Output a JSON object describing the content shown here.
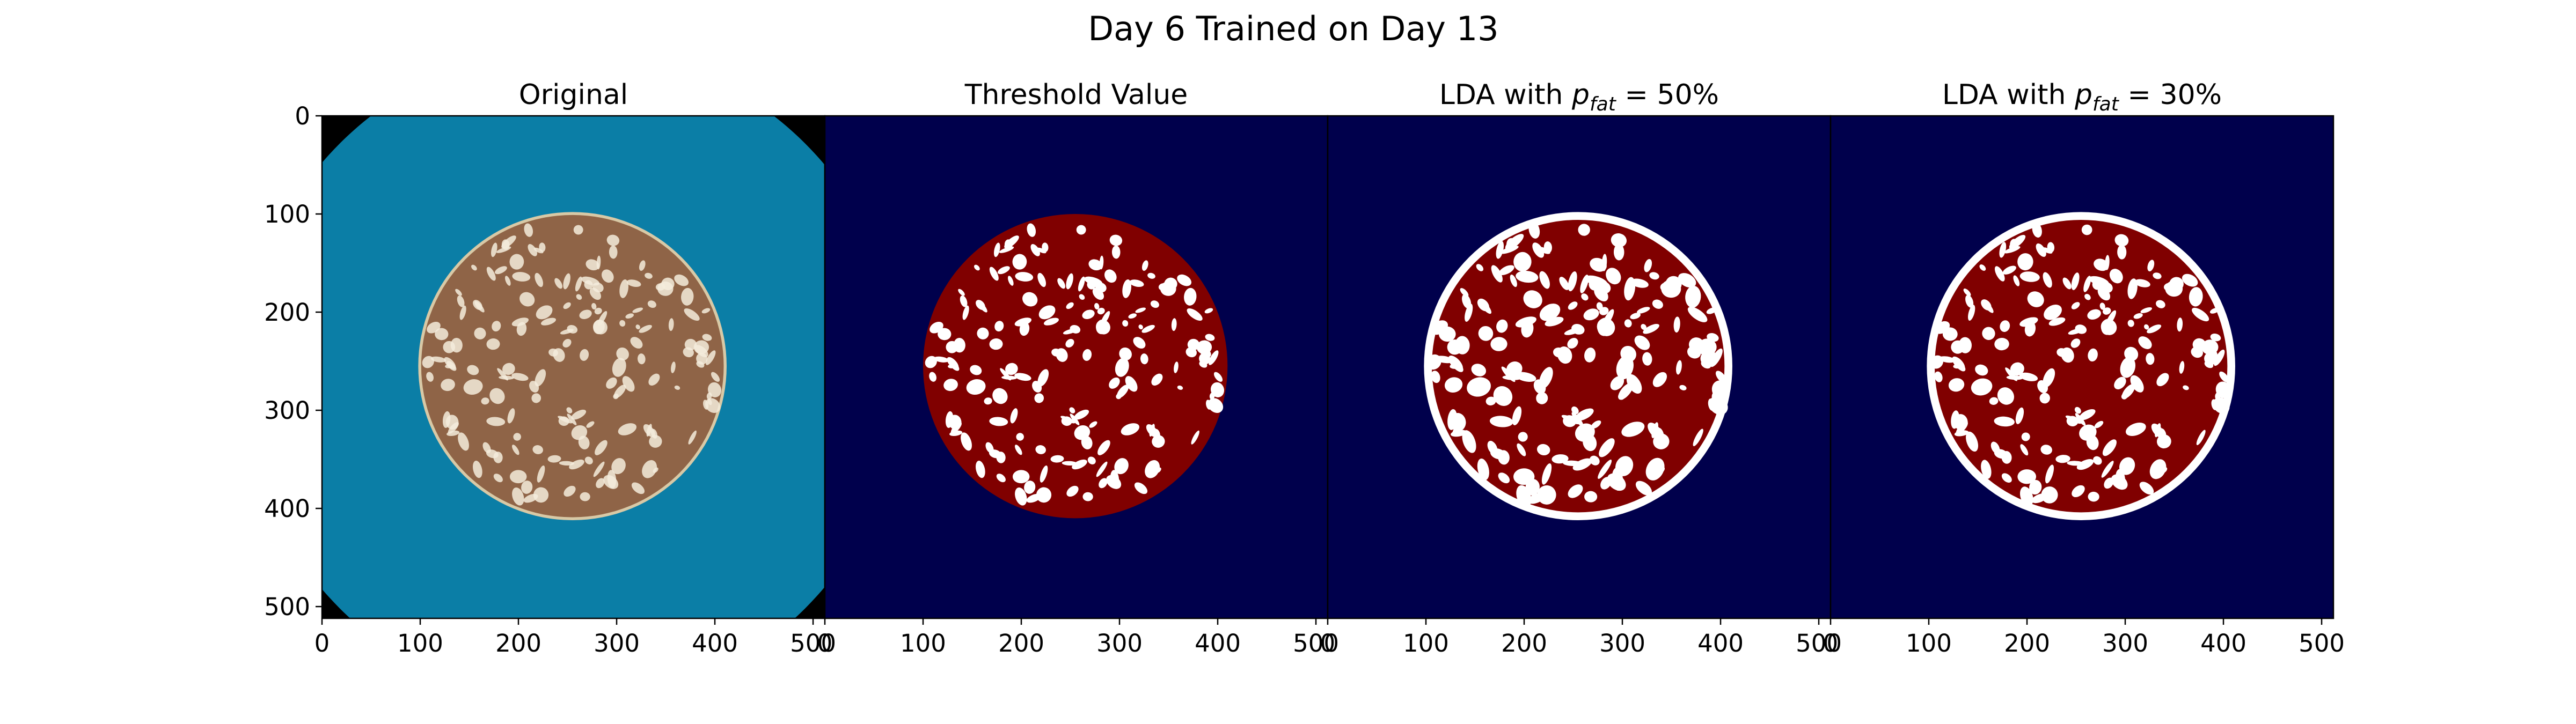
{
  "figure": {
    "title": "Day 6 Trained on Day 13"
  },
  "colors": {
    "background_outside": "#000000",
    "petri_dish": "#0b7ea6",
    "sausage": "#8f6447",
    "sausage_edge": "#d8c9a6",
    "fat": "#f4ecdc",
    "segmentation_background": "#00004c",
    "segmentation_meat": "#800000",
    "segmentation_fat": "#ffffff"
  },
  "axes": {
    "x_ticks": [
      "0",
      "100",
      "200",
      "300",
      "400",
      "500"
    ],
    "y_ticks": [
      "0",
      "100",
      "200",
      "300",
      "400",
      "500"
    ],
    "xlim": [
      0,
      512
    ],
    "ylim": [
      512,
      0
    ]
  },
  "panels": [
    {
      "id": "original",
      "title": "Original",
      "kind": "photo"
    },
    {
      "id": "threshold",
      "title": "Threshold Value",
      "kind": "mask"
    },
    {
      "id": "lda50",
      "title_prefix": "LDA with ",
      "title_var": "p",
      "title_sub": "fat",
      "title_suffix": " = 50%",
      "kind": "mask"
    },
    {
      "id": "lda30",
      "title_prefix": "LDA with ",
      "title_var": "p",
      "title_sub": "fat",
      "title_suffix": " = 30%",
      "kind": "mask"
    }
  ]
}
